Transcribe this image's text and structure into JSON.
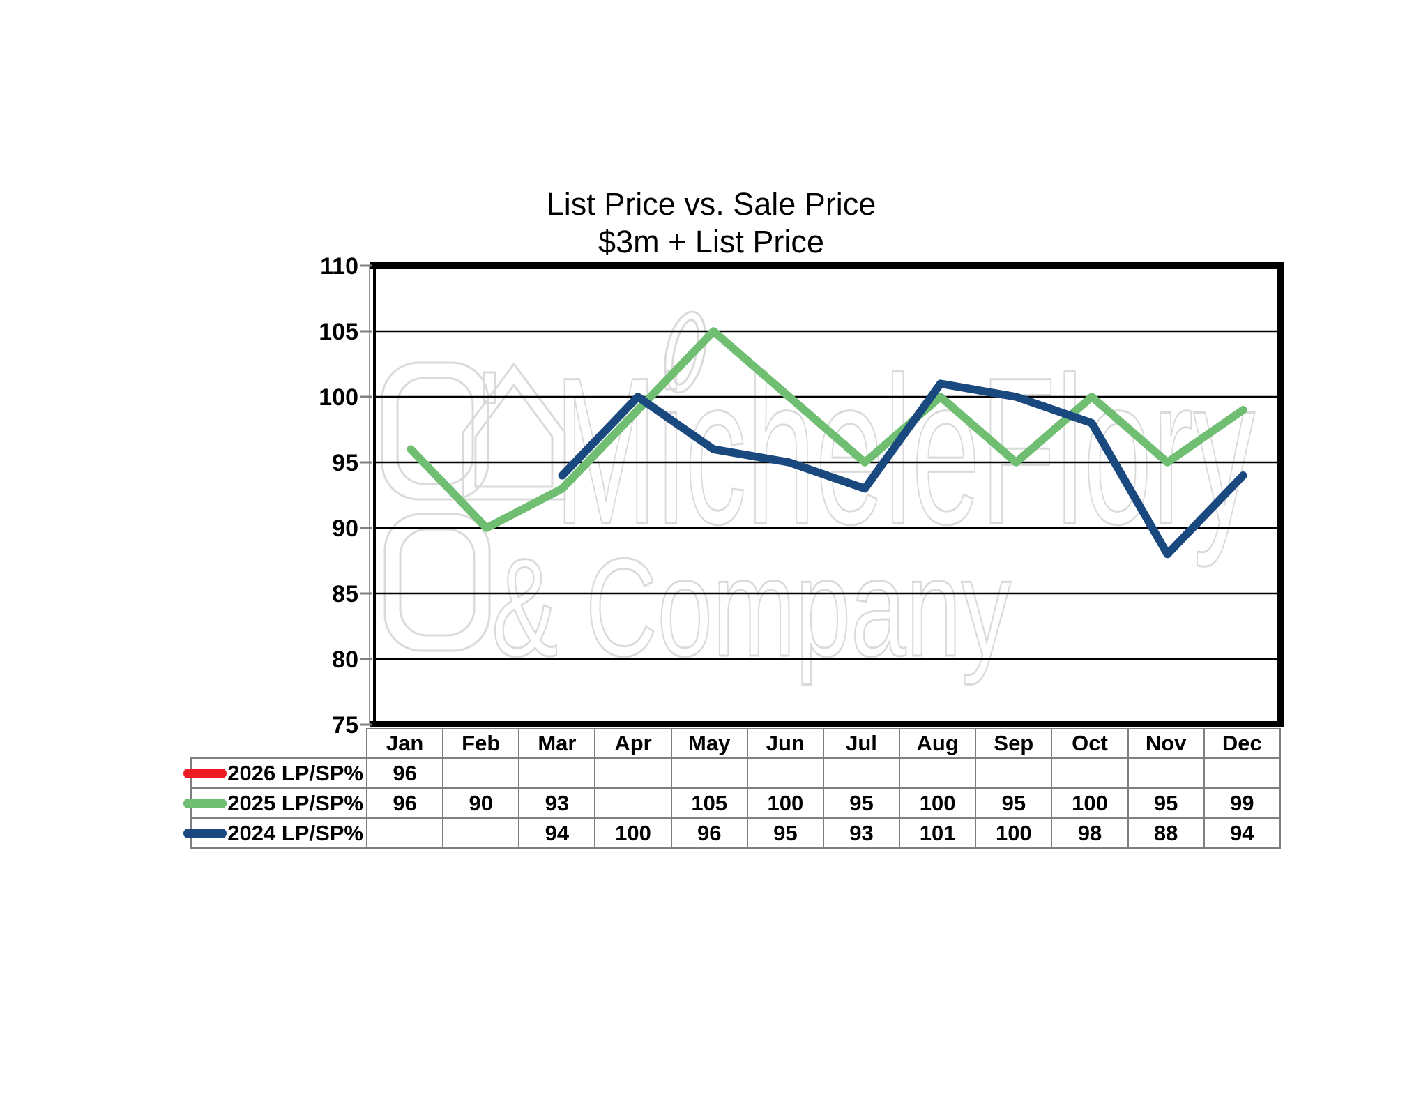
{
  "chart_data": {
    "type": "line",
    "title": "List Price vs. Sale Price",
    "subtitle": "$3m + List Price",
    "categories": [
      "Jan",
      "Feb",
      "Mar",
      "Apr",
      "May",
      "Jun",
      "Jul",
      "Aug",
      "Sep",
      "Oct",
      "Nov",
      "Dec"
    ],
    "series": [
      {
        "name": "2026 LP/SP%",
        "color": "#EC1B23",
        "values": [
          96,
          null,
          null,
          null,
          null,
          null,
          null,
          null,
          null,
          null,
          null,
          null
        ]
      },
      {
        "name": "2025 LP/SP%",
        "color": "#6FBE72",
        "values": [
          96,
          90,
          93,
          null,
          105,
          100,
          95,
          100,
          95,
          100,
          95,
          99
        ]
      },
      {
        "name": "2024 LP/SP%",
        "color": "#19497F",
        "values": [
          null,
          null,
          94,
          100,
          96,
          95,
          93,
          101,
          100,
          98,
          88,
          94
        ]
      }
    ],
    "y_ticks": [
      110,
      105,
      100,
      95,
      90,
      85,
      80,
      75
    ],
    "ylim": [
      75,
      110
    ],
    "grid": true,
    "legend_position": "table-rows-left"
  },
  "watermark": {
    "line1": "MicheleFlory",
    "line2": "& Company"
  },
  "colors": {
    "table_border": "#7f7f7f",
    "gridline": "#000000",
    "tick": "#808080",
    "watermark": "#dadada"
  }
}
